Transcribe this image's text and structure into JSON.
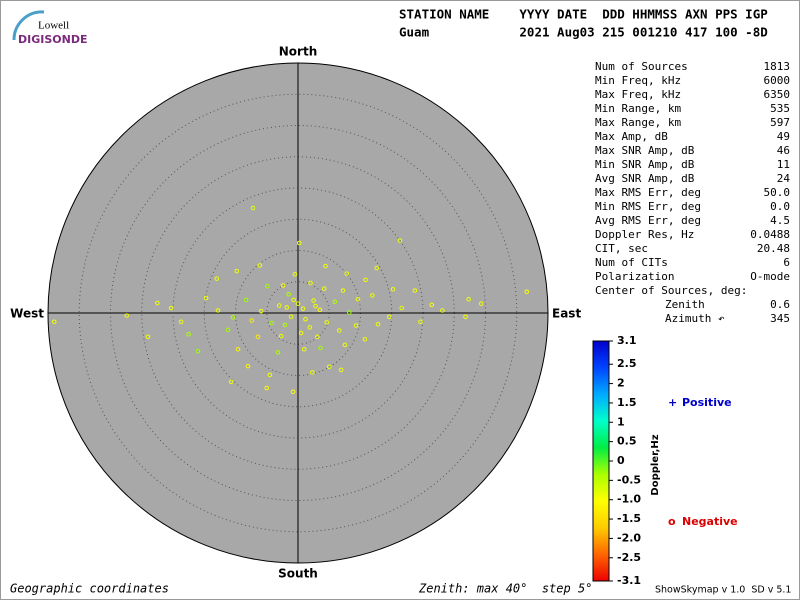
{
  "logo": {
    "top": "Lowell",
    "bottom": "DIGISONDE"
  },
  "header": {
    "labels": "STATION NAME    YYYY DATE  DDD HHMMSS AXN PPS IGP",
    "values": "Guam            2021 Aug03 215 001210 417 100 -8D"
  },
  "stats": [
    [
      "Num of Sources",
      "1813"
    ],
    [
      "Min Freq, kHz",
      "6000"
    ],
    [
      "Max Freq, kHz",
      "6350"
    ],
    [
      "Min Range, km",
      "535"
    ],
    [
      "Max Range, km",
      "597"
    ],
    [
      "Max Amp, dB",
      "49"
    ],
    [
      "Max SNR Amp, dB",
      "46"
    ],
    [
      "Min SNR Amp, dB",
      "11"
    ],
    [
      "Avg SNR Amp, dB",
      "24"
    ],
    [
      "Max RMS Err, deg",
      "50.0"
    ],
    [
      "Min RMS Err, deg",
      "0.0"
    ],
    [
      "Avg RMS Err, deg",
      "4.5"
    ],
    [
      "Doppler Res, Hz",
      "0.0488"
    ],
    [
      "CIT, sec",
      "20.48"
    ],
    [
      "Num of CITs",
      "6"
    ],
    [
      "Polarization",
      "O-mode"
    ],
    [
      "Center of Sources, deg:",
      null
    ],
    [
      "Zenith",
      "0.6"
    ],
    [
      "Azimuth ↶",
      "345"
    ]
  ],
  "footer": {
    "left": "Geographic coordinates",
    "middle": "Zenith: max 40°  step 5°",
    "right": "ShowSkymap v 1.0  SD v 5.1"
  },
  "chart_data": {
    "type": "skymap",
    "directions": {
      "north": "North",
      "south": "South",
      "west": "West",
      "east": "East"
    },
    "rlim": [
      0,
      40
    ],
    "rticks": [
      5,
      10,
      15,
      20,
      25,
      30,
      35
    ],
    "x": [
      -39,
      36.6,
      -7.2,
      0.2,
      -0.8,
      16.3,
      27.3,
      29.3,
      26.8,
      21.4,
      -27.4,
      -20.3,
      -17.5,
      -24,
      -16,
      -10.7,
      -8,
      -4.5,
      5,
      7.5,
      10.7,
      14.6,
      16.6,
      15.2,
      12.6,
      10.8,
      -13,
      -9.8,
      -6.1,
      -2.4,
      4.4,
      7.8,
      3.6,
      -3.2,
      -11.2,
      -12.8,
      -14.7,
      -8.3,
      -6.4,
      9.3,
      11.9,
      19.6,
      23.1,
      18.7,
      -18.7,
      -22.5,
      -5,
      2.3,
      -9.6,
      6.9,
      0.5,
      -1.5,
      2.5,
      4.6,
      -4.2,
      -3,
      1.2,
      3.5,
      -1.1,
      0,
      5.9,
      -5.9,
      6.6,
      -7.4,
      8.2,
      2,
      -2.7,
      1,
      -0.5,
      4.2,
      0.8,
      -0.7,
      1.9,
      -2.1,
      3.1,
      2.8,
      -1.8,
      7.2,
      -4.9,
      9.6,
      12.8,
      -10.4
    ],
    "y": [
      -1.4,
      3.4,
      16.8,
      11.2,
      -12.6,
      11.6,
      2.2,
      1.5,
      -0.6,
      1.3,
      -0.4,
      0.8,
      -3.4,
      -3.8,
      -6.1,
      -11,
      -8.5,
      -9.9,
      -8.6,
      -5.1,
      -4.2,
      -0.6,
      0.8,
      3.8,
      7.2,
      5.3,
      5.5,
      6.7,
      7.6,
      4.4,
      7.5,
      6.3,
      -5.6,
      -6.3,
      -2.7,
      0.4,
      2.4,
      2.1,
      -3.8,
      -2,
      2.8,
      -1.4,
      0.4,
      3.6,
      -1.4,
      1.6,
      -12,
      -9.5,
      -5.8,
      -9.1,
      -3.2,
      3,
      2,
      -1.5,
      -1.6,
      1.2,
      -1,
      0.5,
      -0.6,
      1.5,
      1.8,
      0.3,
      -2.8,
      -1.2,
      0.1,
      4.8,
      -3.7,
      -5.8,
      6.2,
      3.9,
      0.7,
      2.1,
      -2.3,
      -1.9,
      -3.8,
      1.1,
      0.9,
      3.6,
      4.3,
      2.2,
      -1.8,
      -0.7
    ],
    "doppler": [
      -0.9,
      -1.0,
      -0.8,
      -0.9,
      -1.0,
      -0.9,
      -0.9,
      -0.9,
      -0.9,
      -1.0,
      -0.9,
      -0.9,
      -0.4,
      -0.9,
      -0.3,
      -0.9,
      -1.2,
      -0.9,
      -0.9,
      -0.9,
      -0.9,
      -0.9,
      -0.8,
      -0.9,
      -0.9,
      -0.9,
      -0.9,
      -0.9,
      -0.9,
      -1.0,
      -0.9,
      -0.9,
      -0.3,
      -0.4,
      -0.3,
      -0.9,
      -0.9,
      -0.3,
      -1.3,
      -0.9,
      -0.9,
      -0.9,
      -0.9,
      -0.9,
      -0.9,
      -0.9,
      -1.1,
      -0.9,
      -1.2,
      -0.9,
      -0.9,
      -0.4,
      -0.9,
      -0.9,
      -0.3,
      -0.9,
      -0.9,
      -1.0,
      -0.8,
      -0.9,
      -0.4,
      -0.9,
      -0.9,
      -1.3,
      -0.3,
      -0.9,
      -0.9,
      -0.9,
      -0.9,
      -0.9,
      -0.9,
      -0.9,
      -0.9,
      -0.4,
      -0.9,
      -0.9,
      -0.9,
      -0.9,
      -0.3,
      -0.9,
      -0.9,
      -0.4
    ],
    "colorbar": {
      "title": "Doppler,Hz",
      "lim": [
        -3.1,
        3.1
      ],
      "ticks": [
        3.1,
        2.5,
        2,
        1.5,
        1,
        0.5,
        0,
        -0.5,
        {
          "value": -1,
          "label": "-1.0"
        },
        -1.5,
        {
          "value": -2,
          "label": "-2.0"
        },
        -2.5,
        -3.1
      ],
      "colors": [
        "#ee0000",
        "#ff6600",
        "#ffcc00",
        "#ffff00",
        "#aaff00",
        "#00ee44",
        "#00ffcc",
        "#00aaff",
        "#0044ff",
        "#0000cc"
      ]
    },
    "legend": [
      {
        "symbol": "+",
        "label": "Positive",
        "color": "#0000cc"
      },
      {
        "symbol": "o",
        "label": "Negative",
        "color": "#dd0000"
      }
    ],
    "plot_color": "#a8a8a8"
  }
}
